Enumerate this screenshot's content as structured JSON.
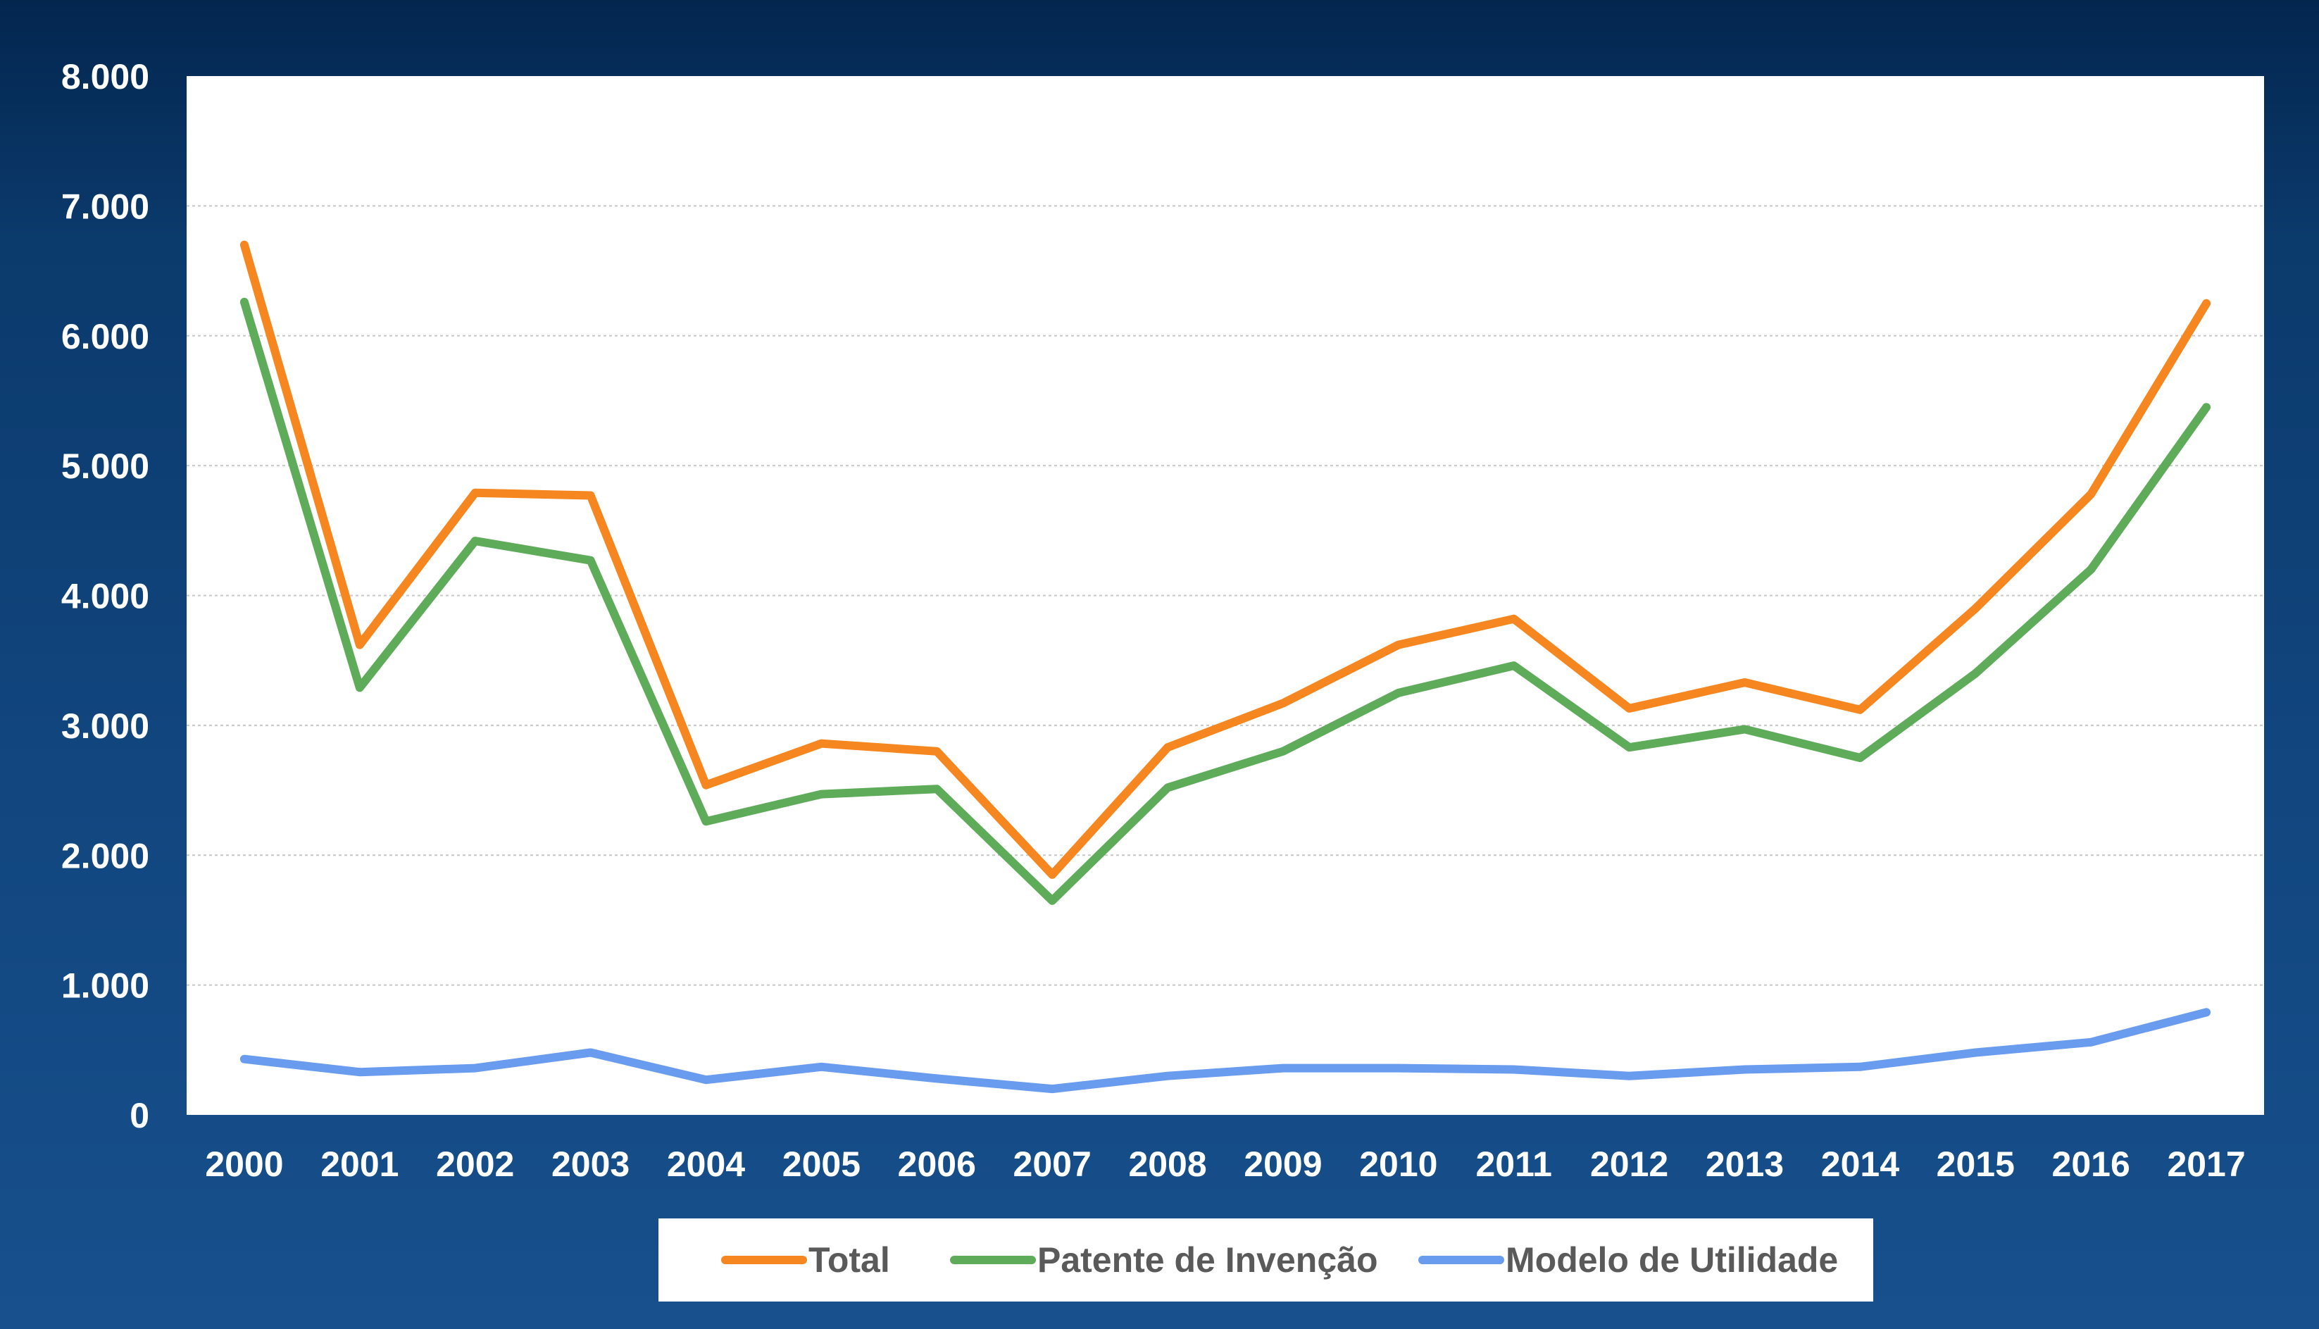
{
  "chart_data": {
    "type": "line",
    "categories": [
      "2000",
      "2001",
      "2002",
      "2003",
      "2004",
      "2005",
      "2006",
      "2007",
      "2008",
      "2009",
      "2010",
      "2011",
      "2012",
      "2013",
      "2014",
      "2015",
      "2016",
      "2017"
    ],
    "series": [
      {
        "name": "Total",
        "color": "#f6861f",
        "values": [
          6700,
          3620,
          4790,
          4770,
          2540,
          2860,
          2800,
          1850,
          2830,
          3170,
          3620,
          3820,
          3130,
          3330,
          3120,
          3900,
          4780,
          6250
        ]
      },
      {
        "name": "Patente de Invenção",
        "color": "#5eab5a",
        "values": [
          6260,
          3290,
          4420,
          4270,
          2260,
          2470,
          2510,
          1650,
          2520,
          2800,
          3250,
          3460,
          2830,
          2970,
          2750,
          3400,
          4200,
          5450
        ]
      },
      {
        "name": "Modelo de Utilidade",
        "color": "#699bef",
        "values": [
          430,
          330,
          360,
          480,
          270,
          370,
          280,
          200,
          300,
          360,
          360,
          350,
          300,
          350,
          370,
          480,
          560,
          790
        ]
      }
    ],
    "y_ticks": [
      "0",
      "1.000",
      "2.000",
      "3.000",
      "4.000",
      "5.000",
      "6.000",
      "7.000",
      "8.000"
    ],
    "ylim": [
      0,
      8000
    ],
    "y_step": 1000,
    "grid": true,
    "legend_position": "bottom",
    "title": "",
    "xlabel": "",
    "ylabel": ""
  }
}
